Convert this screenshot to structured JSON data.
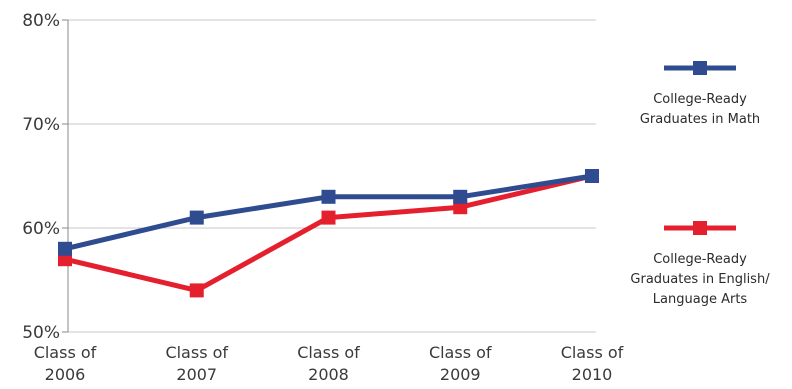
{
  "chart_data": {
    "type": "line",
    "categories": [
      [
        "Class of",
        "2006"
      ],
      [
        "Class of",
        "2007"
      ],
      [
        "Class of",
        "2008"
      ],
      [
        "Class of",
        "2009"
      ],
      [
        "Class of",
        "2010"
      ]
    ],
    "yticks": [
      "50%",
      "60%",
      "70%",
      "80%"
    ],
    "ylim": [
      50,
      80
    ],
    "grid": true,
    "legend_placement": "right",
    "series": [
      {
        "name_lines": [
          "College-Ready",
          "Graduates in Math"
        ],
        "color": "#2e4c8f",
        "values": [
          58,
          61,
          63,
          63,
          65
        ]
      },
      {
        "name_lines": [
          "College-Ready",
          "Graduates in English/",
          "Language Arts"
        ],
        "color": "#e5202e",
        "values": [
          57,
          54,
          61,
          62,
          65
        ]
      }
    ]
  }
}
